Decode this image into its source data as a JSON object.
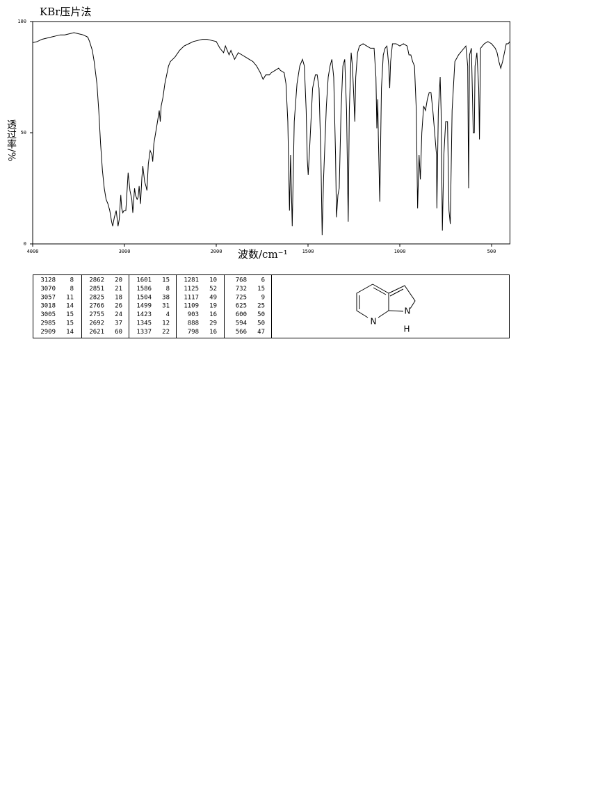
{
  "chart_data": {
    "type": "line",
    "title": "KBr压片法",
    "x_label": "波数/cm⁻¹",
    "y_label": "透过率/%",
    "color": "#000000",
    "xlim": [
      4000,
      400
    ],
    "xticks": [
      4000,
      3000,
      2000,
      1500,
      1000,
      500
    ],
    "ylim": [
      0,
      100
    ],
    "yticks": [
      0,
      50,
      100
    ],
    "grid": false,
    "x": [
      4000,
      3950,
      3900,
      3850,
      3800,
      3750,
      3700,
      3650,
      3600,
      3550,
      3500,
      3450,
      3400,
      3380,
      3350,
      3330,
      3300,
      3280,
      3260,
      3240,
      3220,
      3200,
      3180,
      3160,
      3140,
      3128,
      3110,
      3090,
      3070,
      3057,
      3040,
      3030,
      3018,
      3005,
      2985,
      2970,
      2960,
      2940,
      2920,
      2909,
      2890,
      2880,
      2862,
      2851,
      2840,
      2825,
      2810,
      2800,
      2780,
      2766,
      2755,
      2740,
      2720,
      2700,
      2692,
      2680,
      2660,
      2640,
      2621,
      2610,
      2600,
      2580,
      2560,
      2540,
      2520,
      2500,
      2450,
      2400,
      2350,
      2300,
      2250,
      2200,
      2150,
      2100,
      2050,
      2000,
      1980,
      1960,
      1950,
      1930,
      1920,
      1900,
      1880,
      1860,
      1840,
      1820,
      1800,
      1780,
      1760,
      1745,
      1730,
      1710,
      1700,
      1680,
      1660,
      1650,
      1630,
      1620,
      1610,
      1601,
      1595,
      1586,
      1575,
      1560,
      1545,
      1530,
      1520,
      1510,
      1504,
      1499,
      1490,
      1475,
      1460,
      1450,
      1440,
      1430,
      1423,
      1415,
      1400,
      1390,
      1380,
      1370,
      1360,
      1350,
      1345,
      1337,
      1330,
      1320,
      1310,
      1300,
      1290,
      1281,
      1275,
      1265,
      1258,
      1250,
      1245,
      1240,
      1230,
      1220,
      1200,
      1180,
      1160,
      1140,
      1130,
      1125,
      1120,
      1117,
      1109,
      1100,
      1090,
      1080,
      1070,
      1060,
      1055,
      1050,
      1040,
      1020,
      1000,
      980,
      960,
      950,
      940,
      930,
      920,
      910,
      903,
      895,
      888,
      880,
      870,
      860,
      850,
      840,
      830,
      820,
      810,
      800,
      798,
      790,
      780,
      775,
      768,
      760,
      750,
      740,
      732,
      725,
      715,
      700,
      680,
      660,
      640,
      630,
      625,
      620,
      610,
      605,
      600,
      594,
      590,
      580,
      570,
      566,
      560,
      540,
      520,
      500,
      480,
      470,
      460,
      450,
      440,
      430,
      420,
      410,
      400
    ],
    "values": [
      90.5,
      91,
      92,
      92.5,
      93,
      93.5,
      94,
      94,
      94.5,
      95,
      94.5,
      94,
      93,
      91,
      87,
      82,
      72,
      60,
      45,
      33,
      25,
      20,
      18,
      15,
      10,
      8,
      12,
      15,
      8,
      11,
      22,
      16,
      14,
      15,
      15,
      25,
      32,
      24,
      20,
      14,
      25,
      22,
      20,
      21,
      26,
      18,
      30,
      35,
      28,
      26,
      24,
      36,
      42,
      40,
      37,
      45,
      50,
      55,
      60,
      55,
      62,
      66,
      72,
      76,
      80,
      82,
      84,
      87,
      89,
      90,
      91,
      91.5,
      92,
      92,
      91.5,
      91,
      88,
      86,
      89,
      85,
      87,
      83,
      86,
      85,
      84,
      83,
      82,
      80,
      77,
      74,
      76,
      76,
      77,
      78,
      79,
      78,
      77,
      72,
      55,
      15,
      40,
      8,
      55,
      72,
      80,
      83,
      80,
      60,
      38,
      31,
      45,
      70,
      76,
      76,
      70,
      40,
      4,
      30,
      62,
      75,
      80,
      83,
      75,
      40,
      12,
      22,
      25,
      60,
      80,
      83,
      60,
      10,
      60,
      86,
      80,
      65,
      55,
      75,
      86,
      89,
      90,
      89,
      88,
      88,
      75,
      52,
      65,
      49,
      19,
      70,
      85,
      88,
      89,
      80,
      70,
      82,
      90,
      90,
      89,
      90,
      89,
      85,
      85,
      82,
      80,
      60,
      16,
      40,
      29,
      50,
      62,
      60,
      65,
      68,
      68,
      60,
      50,
      40,
      16,
      60,
      75,
      60,
      6,
      40,
      55,
      55,
      15,
      9,
      60,
      82,
      85,
      87,
      89,
      80,
      25,
      85,
      88,
      70,
      50,
      50,
      80,
      86,
      70,
      47,
      88,
      90,
      91,
      90,
      88,
      86,
      82,
      79,
      82,
      86,
      90,
      90,
      91
    ]
  },
  "peak_table": [
    [
      [
        3128,
        8
      ],
      [
        3070,
        8
      ],
      [
        3057,
        11
      ],
      [
        3018,
        14
      ],
      [
        3005,
        15
      ],
      [
        2985,
        15
      ],
      [
        2909,
        14
      ]
    ],
    [
      [
        2862,
        20
      ],
      [
        2851,
        21
      ],
      [
        2825,
        18
      ],
      [
        2766,
        26
      ],
      [
        2755,
        24
      ],
      [
        2692,
        37
      ],
      [
        2621,
        60
      ]
    ],
    [
      [
        1601,
        15
      ],
      [
        1586,
        8
      ],
      [
        1504,
        38
      ],
      [
        1499,
        31
      ],
      [
        1423,
        4
      ],
      [
        1345,
        12
      ],
      [
        1337,
        22
      ]
    ],
    [
      [
        1281,
        10
      ],
      [
        1125,
        52
      ],
      [
        1117,
        49
      ],
      [
        1109,
        19
      ],
      [
        903,
        16
      ],
      [
        888,
        29
      ],
      [
        798,
        16
      ]
    ],
    [
      [
        768,
        6
      ],
      [
        732,
        15
      ],
      [
        725,
        9
      ],
      [
        625,
        25
      ],
      [
        600,
        50
      ],
      [
        594,
        50
      ],
      [
        566,
        47
      ]
    ]
  ],
  "structure": {
    "atoms": [
      "N",
      "N",
      "H"
    ]
  }
}
